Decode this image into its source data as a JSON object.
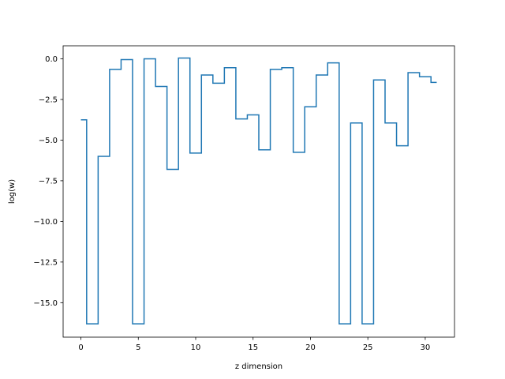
{
  "chart_data": {
    "type": "line",
    "drawstyle": "steps-mid",
    "xlabel": "z dimension",
    "ylabel": "log(w)",
    "x": [
      0,
      1,
      2,
      3,
      4,
      5,
      6,
      7,
      8,
      9,
      10,
      11,
      12,
      13,
      14,
      15,
      16,
      17,
      18,
      19,
      20,
      21,
      22,
      23,
      24,
      25,
      26,
      27,
      28,
      29,
      30,
      31
    ],
    "series": [
      {
        "color": "#1f77b4",
        "values": [
          -3.75,
          -16.3,
          -6.0,
          -0.65,
          -0.05,
          -16.3,
          0.0,
          -1.7,
          -6.8,
          0.05,
          -5.8,
          -1.0,
          -1.5,
          -0.55,
          -3.7,
          -3.45,
          -5.6,
          -0.65,
          -0.55,
          -5.75,
          -2.95,
          -1.0,
          -0.25,
          -16.3,
          -3.95,
          -16.3,
          -1.3,
          -3.95,
          -5.35,
          -0.85,
          -1.1,
          -1.45
        ]
      }
    ],
    "xlim": [
      -1.55,
      32.55
    ],
    "ylim": [
      -17.12,
      0.8
    ],
    "xticks": [
      0,
      5,
      10,
      15,
      20,
      25,
      30
    ],
    "xtick_labels": [
      "0",
      "5",
      "10",
      "15",
      "20",
      "25",
      "30"
    ],
    "yticks": [
      0.0,
      -2.5,
      -5.0,
      -7.5,
      -10.0,
      -12.5,
      -15.0
    ],
    "ytick_labels": [
      "0.0",
      "−2.5",
      "−5.0",
      "−7.5",
      "−10.0",
      "−12.5",
      "−15.0"
    ],
    "grid": false,
    "legend": false
  }
}
